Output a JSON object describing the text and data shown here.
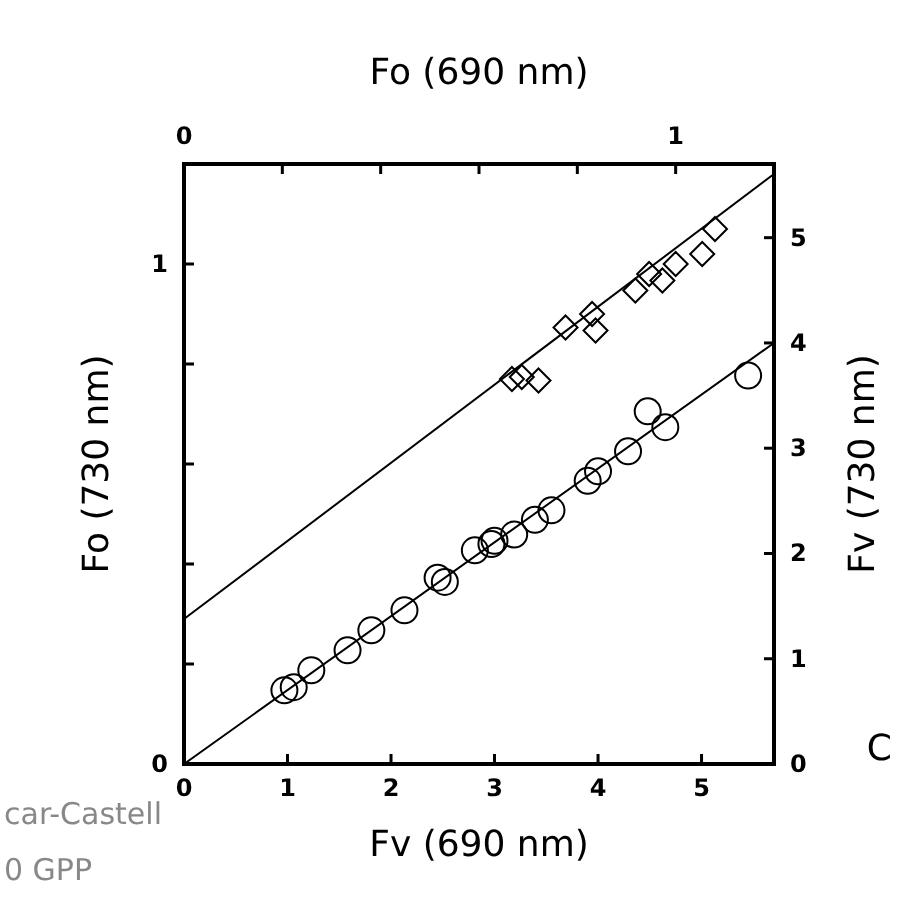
{
  "chart_data": {
    "type": "scatter",
    "xlabel": "Fv (690 nm)",
    "x2label": "Fo (690 nm)",
    "ylabel": "Fo (730 nm)",
    "y2label": "Fv (730 nm)",
    "xlim": [
      0,
      5.7
    ],
    "xticks": [
      0,
      1,
      2,
      3,
      4,
      5
    ],
    "x2lim": [
      0,
      1.2
    ],
    "x2ticks": [
      0,
      {
        "value": 0.2,
        "label": null
      },
      {
        "value": 0.4,
        "label": null
      },
      {
        "value": 0.6,
        "label": null
      },
      {
        "value": 0.8,
        "label": null
      },
      1
    ],
    "ylim": [
      0,
      1.2
    ],
    "yticks": [
      0,
      {
        "value": 0.2,
        "label": null
      },
      {
        "value": 0.4,
        "label": null
      },
      {
        "value": 0.6,
        "label": null
      },
      {
        "value": 0.8,
        "label": null
      },
      1
    ],
    "y2lim": [
      0,
      5.7
    ],
    "y2ticks": [
      0,
      1,
      2,
      3,
      4,
      5
    ],
    "grid": false,
    "series": [
      {
        "axis": "x2",
        "marker": "diamond",
        "color": "#000000",
        "x": [
          0.667,
          0.687,
          0.721,
          0.776,
          0.83,
          0.837,
          0.918,
          0.946,
          0.973,
          1.0,
          1.054,
          1.08
        ],
        "values": [
          0.77,
          0.774,
          0.767,
          0.873,
          0.9,
          0.867,
          0.947,
          0.98,
          0.967,
          1.0,
          1.02,
          1.07
        ]
      },
      {
        "type": "line",
        "axis": "x2",
        "marker": "none",
        "line_style": "solid",
        "color": "#000000",
        "x": [
          0,
          1.2
        ],
        "values": [
          0.29,
          1.18
        ]
      },
      {
        "axis": "y2",
        "marker": "circle",
        "color": "#000000",
        "x": [
          0.97,
          1.06,
          1.23,
          1.58,
          1.81,
          2.13,
          2.45,
          2.52,
          2.81,
          2.97,
          3.0,
          3.19,
          3.39,
          3.55,
          3.9,
          4.0,
          4.29,
          4.48,
          4.65,
          5.45
        ],
        "values": [
          0.7,
          0.73,
          0.89,
          1.08,
          1.27,
          1.46,
          1.77,
          1.73,
          2.03,
          2.09,
          2.12,
          2.18,
          2.32,
          2.41,
          2.69,
          2.78,
          2.97,
          3.35,
          3.2,
          3.69
        ]
      },
      {
        "type": "line",
        "axis": "y2",
        "marker": "none",
        "line_style": "solid",
        "color": "#000000",
        "x": [
          0,
          5.7
        ],
        "values": [
          0,
          4.0
        ]
      }
    ],
    "annotations": [
      "car-Castell",
      "0 GPP",
      "C"
    ]
  }
}
